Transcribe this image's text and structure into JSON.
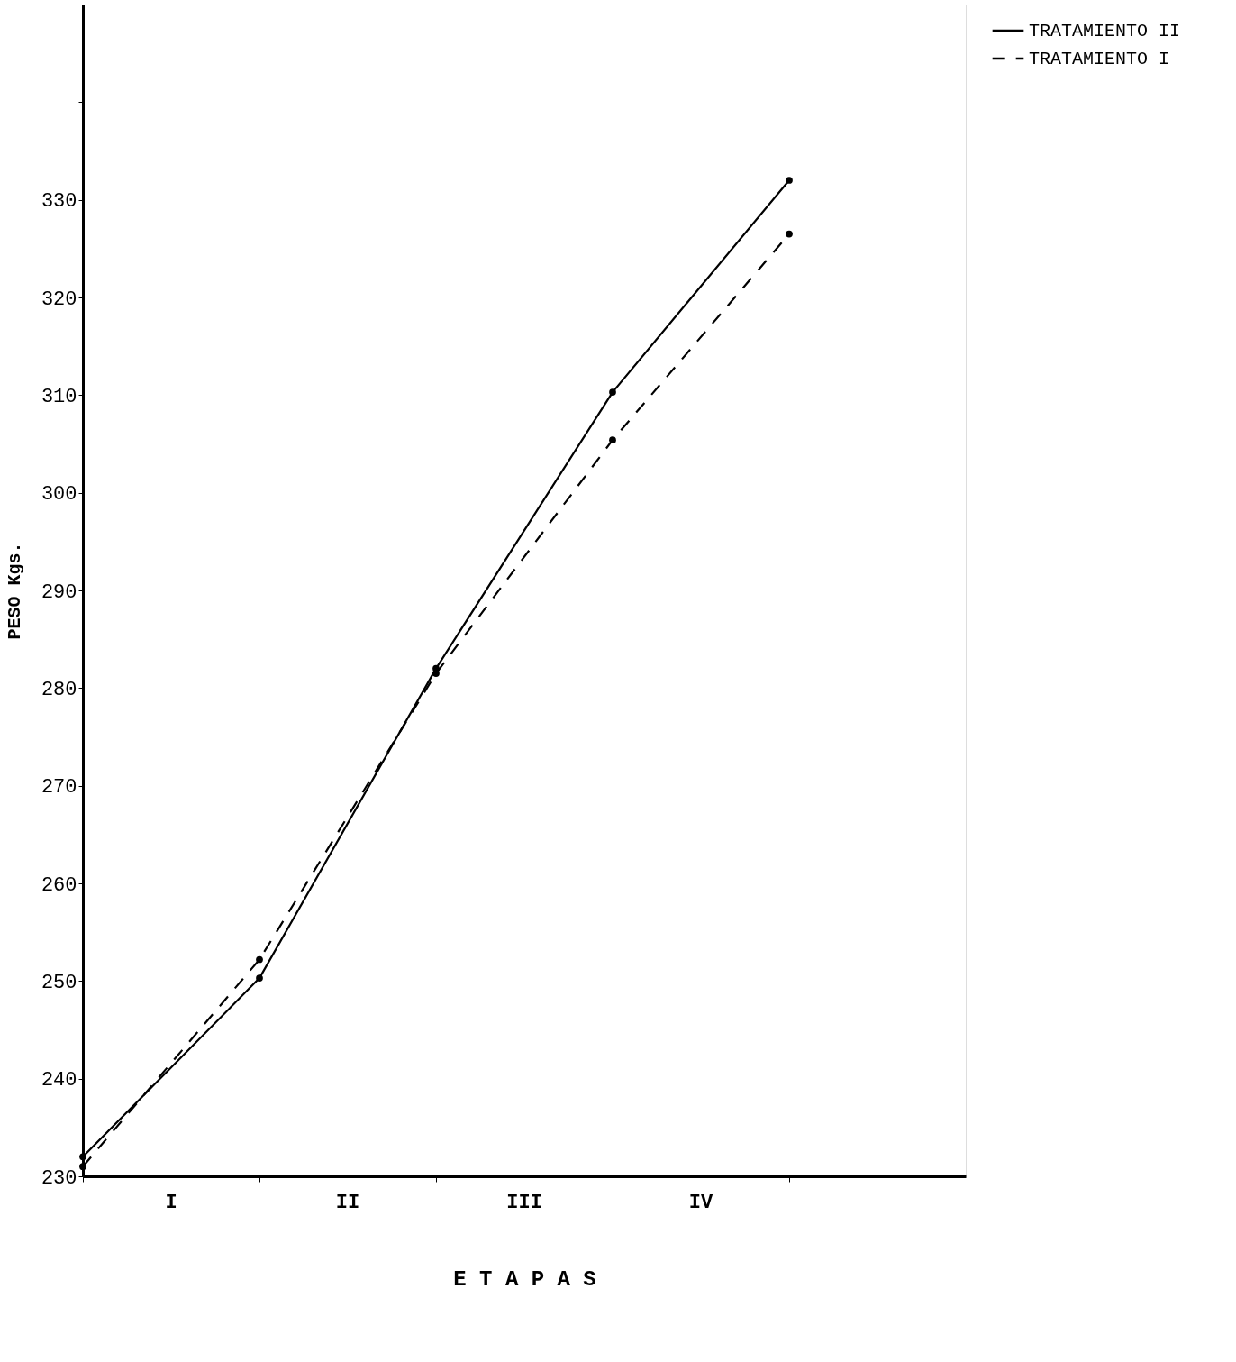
{
  "chart_data": {
    "type": "line",
    "xlabel": "E T A P A S",
    "ylabel": "PESO Kgs.",
    "categories": [
      null,
      null,
      null,
      null,
      null
    ],
    "series": [
      {
        "name": "TRATAMIENTO II",
        "color": "#000000",
        "line_style": "solid",
        "values": [
          232,
          250.3,
          282,
          310.3,
          332
        ]
      },
      {
        "name": "TRATAMIENTO I",
        "color": "#000000",
        "line_style": "dashed",
        "values": [
          231,
          252.2,
          281.5,
          305.4,
          326.5
        ]
      }
    ],
    "annotations": [
      "I",
      "II",
      "III",
      "IV"
    ],
    "ylim": [
      230,
      350
    ],
    "yticks": [
      230,
      240,
      250,
      260,
      270,
      280,
      290,
      300,
      310,
      320,
      330,
      {
        "value": 340,
        "label": null
      }
    ],
    "marker": "circle",
    "grid": false,
    "legend": "right"
  }
}
